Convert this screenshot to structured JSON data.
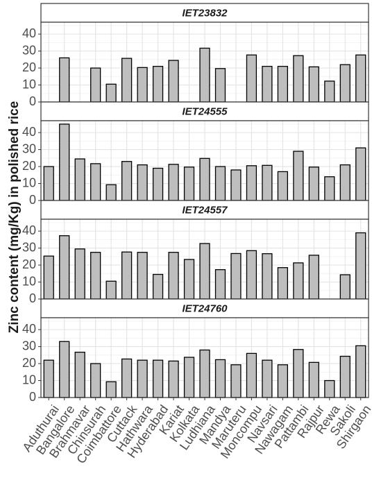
{
  "chart_data": {
    "type": "bar",
    "ylabel": "Zinc content (mg/Kg) in polished rice",
    "xlabel": "",
    "ylim": [
      0,
      47
    ],
    "yticks": [
      0,
      10,
      20,
      30,
      40
    ],
    "grid": true,
    "categories": [
      "Aduthurai",
      "Bangalore",
      "Brahmavar",
      "Chinsurah",
      "Coimbattore",
      "Cuttack",
      "Hathwara",
      "Hyderabad",
      "Kariat",
      "Kolkata",
      "Ludhiana",
      "Mandya",
      "Maruteru",
      "Moncompu",
      "Navsari",
      "Nawagam",
      "Pattambi",
      "Rajpur",
      "Rewa",
      "Sakoli",
      "Shirgaon"
    ],
    "facets": [
      {
        "name": "IET23832",
        "values": [
          null,
          26,
          null,
          20,
          10.5,
          25.7,
          20.3,
          21,
          24.5,
          null,
          31.7,
          19.7,
          null,
          27.7,
          21,
          21,
          27.3,
          20.7,
          12.3,
          22,
          27.7
        ]
      },
      {
        "name": "IET24555",
        "values": [
          20,
          45,
          24.5,
          21.7,
          9.3,
          23,
          21,
          19,
          21.3,
          19.7,
          24.8,
          20,
          18,
          20.5,
          20.7,
          17,
          29,
          19.7,
          14,
          21,
          31
        ]
      },
      {
        "name": "IET24557",
        "values": [
          25.3,
          37.3,
          29.5,
          27.5,
          10.5,
          27.7,
          27.5,
          14.5,
          27.5,
          23.3,
          32.7,
          17.3,
          26.8,
          28.5,
          26.7,
          18.5,
          21.3,
          25.8,
          null,
          14.3,
          39
        ]
      },
      {
        "name": "IET24760",
        "values": [
          22,
          33,
          26.7,
          20,
          9.3,
          22.7,
          22,
          22,
          21.5,
          23.7,
          28,
          22.3,
          19.3,
          26,
          22,
          19.3,
          28.3,
          20.7,
          10,
          24.3,
          30.5
        ]
      }
    ]
  }
}
